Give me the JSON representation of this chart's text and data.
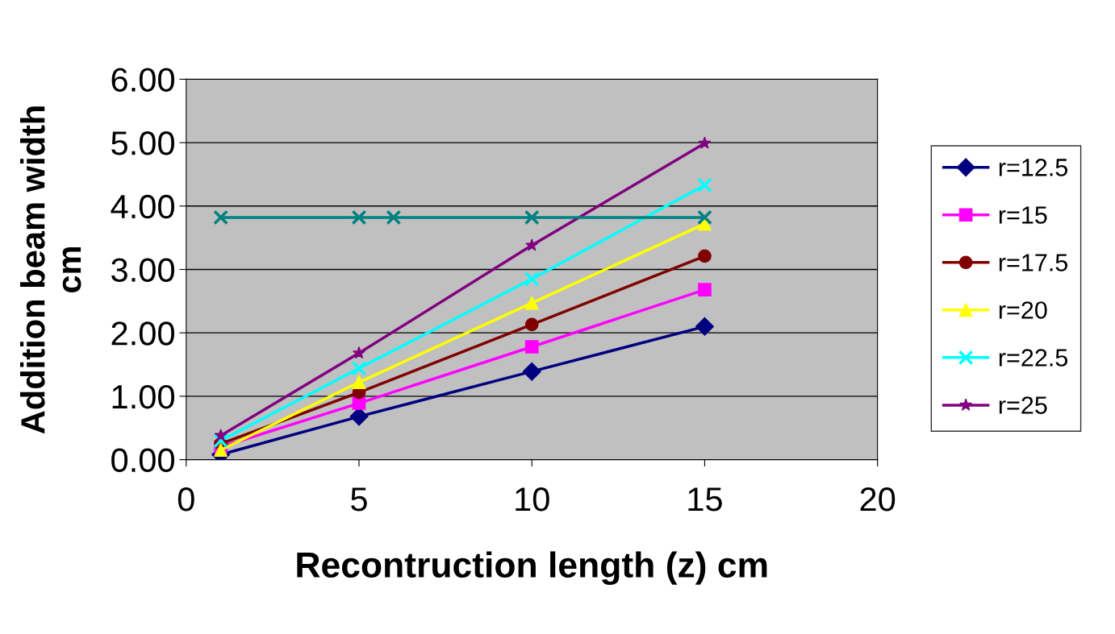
{
  "chart_data": {
    "type": "line",
    "xlabel": "Recontruction length (z) cm",
    "ylabel": "Addition beam width\ncm",
    "xlim": [
      0,
      20
    ],
    "xticks": [
      0,
      5,
      10,
      15,
      20
    ],
    "ylim": [
      0,
      6
    ],
    "yticks": [
      {
        "value": 0,
        "label": "0.00"
      },
      {
        "value": 1,
        "label": "1.00"
      },
      {
        "value": 2,
        "label": "2.00"
      },
      {
        "value": 3,
        "label": "3.00"
      },
      {
        "value": 4,
        "label": "4.00"
      },
      {
        "value": 5,
        "label": "5.00"
      },
      {
        "value": 6,
        "label": "6.00"
      }
    ],
    "grid": "y",
    "legend": "right",
    "series": [
      {
        "name": "r=12.5",
        "color": "#000080",
        "marker": "diamond",
        "x": [
          1,
          5,
          10,
          15
        ],
        "values": [
          0.08,
          0.68,
          1.39,
          2.1
        ]
      },
      {
        "name": "r=15",
        "color": "#ff00ff",
        "marker": "square",
        "x": [
          1,
          5,
          10,
          15
        ],
        "values": [
          0.2,
          0.89,
          1.78,
          2.68
        ]
      },
      {
        "name": "r=17.5",
        "color": "#800000",
        "marker": "circle",
        "x": [
          1,
          5,
          10,
          15
        ],
        "values": [
          0.25,
          1.06,
          2.13,
          3.21
        ]
      },
      {
        "name": "r=20",
        "color": "#ffff00",
        "marker": "triangle",
        "x": [
          1,
          5,
          10,
          15
        ],
        "values": [
          0.15,
          1.22,
          2.47,
          3.72
        ]
      },
      {
        "name": "r=22.5",
        "color": "#00ffff",
        "marker": "cross",
        "x": [
          1,
          5,
          10,
          15
        ],
        "values": [
          0.3,
          1.44,
          2.85,
          4.33
        ]
      },
      {
        "name": "r=25",
        "color": "#800080",
        "marker": "star",
        "x": [
          1,
          5,
          10,
          15
        ],
        "values": [
          0.38,
          1.68,
          3.38,
          4.99
        ]
      },
      {
        "color": "#008080",
        "marker": "cross",
        "x": [
          1,
          5,
          6,
          10,
          15
        ],
        "values": [
          3.82,
          3.82,
          3.82,
          3.82,
          3.82
        ]
      }
    ]
  }
}
